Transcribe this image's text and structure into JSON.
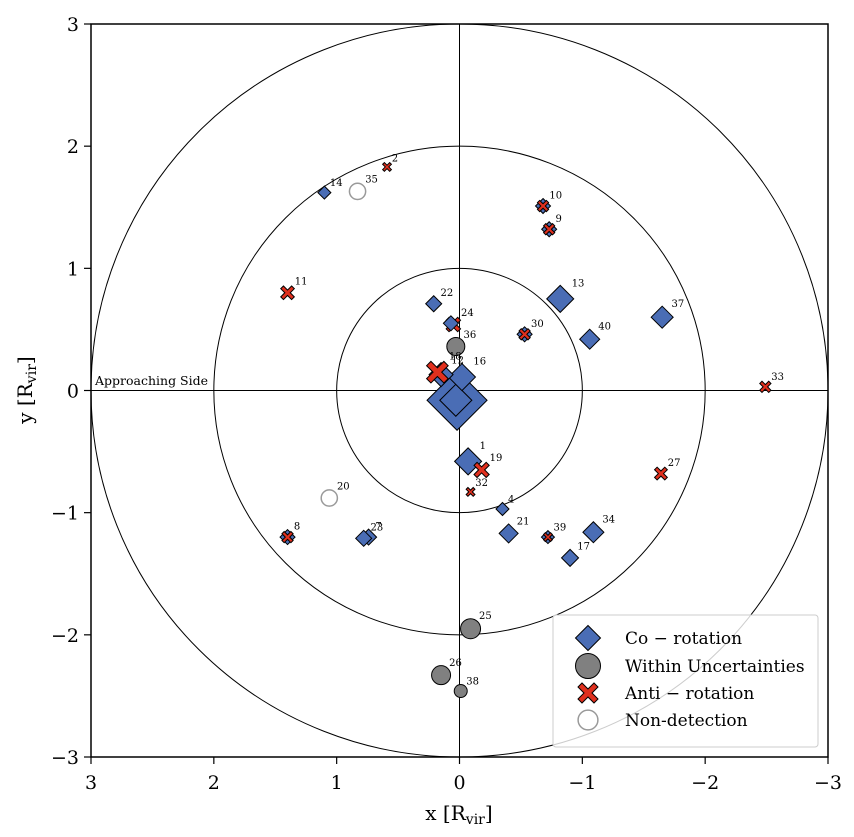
{
  "chart_data": {
    "type": "scatter",
    "title": "",
    "xlabel": "x [R",
    "xlabel_sub": "vir",
    "xlabel_end": "]",
    "ylabel": "y [R",
    "ylabel_sub": "vir",
    "ylabel_end": "]",
    "xlim": [
      3,
      -3
    ],
    "ylim": [
      -3,
      3
    ],
    "x_ticks": [
      3,
      2,
      1,
      0,
      -1,
      -2,
      -3
    ],
    "y_ticks": [
      3,
      2,
      1,
      0,
      -1,
      -2,
      -3
    ],
    "x_tick_labels": [
      "3",
      "2",
      "1",
      "0",
      "−1",
      "−2",
      "−3"
    ],
    "y_tick_labels": [
      "3",
      "2",
      "1",
      "0",
      "−1",
      "−2",
      "−3"
    ],
    "circle_radii": [
      1,
      2,
      3
    ],
    "annotation": "Approaching Side",
    "colors": {
      "co": "#4a6db5",
      "anti": "#e0301e",
      "within": "#808080",
      "nondet": "#9a9a9a",
      "edge": "#000000"
    },
    "legend": {
      "position": "lower-right",
      "entries": [
        {
          "label": "Co − rotation",
          "marker": "co"
        },
        {
          "label": "Within Uncertainties",
          "marker": "within"
        },
        {
          "label": "Anti − rotation",
          "marker": "anti"
        },
        {
          "label": "Non-detection",
          "marker": "nondet"
        }
      ]
    },
    "points": [
      {
        "id": "",
        "x": 0.02,
        "y": -0.08,
        "type": "co",
        "size": 3.0
      },
      {
        "id": "",
        "x": 0.03,
        "y": -0.08,
        "type": "co",
        "size": 1.6
      },
      {
        "id": "16",
        "x": -0.02,
        "y": 0.11,
        "type": "co",
        "size": 1.35
      },
      {
        "id": "12",
        "x": 0.15,
        "y": 0.13,
        "type": "co",
        "size": 1.2
      },
      {
        "id": "18",
        "x": 0.18,
        "y": 0.15,
        "type": "anti",
        "size": 1.35
      },
      {
        "id": "36",
        "x": 0.03,
        "y": 0.36,
        "type": "within",
        "size": 0.9
      },
      {
        "id": "24",
        "x": 0.05,
        "y": 0.54,
        "type": "anti",
        "size": 0.9
      },
      {
        "id": "",
        "x": 0.07,
        "y": 0.55,
        "type": "co",
        "size": 0.75
      },
      {
        "id": "22",
        "x": 0.21,
        "y": 0.71,
        "type": "co",
        "size": 0.8
      },
      {
        "id": "30",
        "x": -0.53,
        "y": 0.46,
        "type": "co",
        "size": 0.75
      },
      {
        "id": "",
        "x": -0.53,
        "y": 0.46,
        "type": "anti",
        "size": 0.7
      },
      {
        "id": "13",
        "x": -0.82,
        "y": 0.75,
        "type": "co",
        "size": 1.35
      },
      {
        "id": "40",
        "x": -1.06,
        "y": 0.42,
        "type": "co",
        "size": 1.0
      },
      {
        "id": "37",
        "x": -1.65,
        "y": 0.6,
        "type": "co",
        "size": 1.1
      },
      {
        "id": "33",
        "x": -2.49,
        "y": 0.03,
        "type": "anti",
        "size": 0.7
      },
      {
        "id": "10",
        "x": -0.68,
        "y": 1.51,
        "type": "co",
        "size": 0.75
      },
      {
        "id": "",
        "x": -0.68,
        "y": 1.51,
        "type": "anti",
        "size": 0.7
      },
      {
        "id": "9",
        "x": -0.73,
        "y": 1.32,
        "type": "co",
        "size": 0.75
      },
      {
        "id": "",
        "x": -0.73,
        "y": 1.32,
        "type": "anti",
        "size": 0.7
      },
      {
        "id": "2",
        "x": 0.59,
        "y": 1.83,
        "type": "anti",
        "size": 0.55
      },
      {
        "id": "14",
        "x": 1.1,
        "y": 1.62,
        "type": "co",
        "size": 0.65
      },
      {
        "id": "35",
        "x": 0.83,
        "y": 1.63,
        "type": "nondet",
        "size": 0.9
      },
      {
        "id": "11",
        "x": 1.4,
        "y": 0.8,
        "type": "anti",
        "size": 0.85
      },
      {
        "id": "1",
        "x": -0.07,
        "y": -0.58,
        "type": "co",
        "size": 1.35
      },
      {
        "id": "19",
        "x": -0.18,
        "y": -0.65,
        "type": "anti",
        "size": 0.95
      },
      {
        "id": "32",
        "x": -0.09,
        "y": -0.83,
        "type": "anti",
        "size": 0.55
      },
      {
        "id": "4",
        "x": -0.35,
        "y": -0.97,
        "type": "co",
        "size": 0.65
      },
      {
        "id": "21",
        "x": -0.4,
        "y": -1.17,
        "type": "co",
        "size": 0.95
      },
      {
        "id": "39",
        "x": -0.72,
        "y": -1.2,
        "type": "co",
        "size": 0.65
      },
      {
        "id": "",
        "x": -0.72,
        "y": -1.2,
        "type": "anti",
        "size": 0.55
      },
      {
        "id": "17",
        "x": -0.9,
        "y": -1.37,
        "type": "co",
        "size": 0.85
      },
      {
        "id": "34",
        "x": -1.09,
        "y": -1.16,
        "type": "co",
        "size": 1.05
      },
      {
        "id": "27",
        "x": -1.64,
        "y": -0.68,
        "type": "anti",
        "size": 0.8
      },
      {
        "id": "20",
        "x": 1.06,
        "y": -0.88,
        "type": "nondet",
        "size": 0.9
      },
      {
        "id": "8",
        "x": 1.4,
        "y": -1.2,
        "type": "co",
        "size": 0.75
      },
      {
        "id": "",
        "x": 1.4,
        "y": -1.2,
        "type": "anti",
        "size": 0.7
      },
      {
        "id": "7",
        "x": 0.74,
        "y": -1.2,
        "type": "co",
        "size": 0.8
      },
      {
        "id": "23",
        "x": 0.78,
        "y": -1.21,
        "type": "co",
        "size": 0.8
      },
      {
        "id": "25",
        "x": -0.09,
        "y": -1.95,
        "type": "within",
        "size": 1.0
      },
      {
        "id": "26",
        "x": 0.15,
        "y": -2.33,
        "type": "within",
        "size": 0.95
      },
      {
        "id": "38",
        "x": -0.01,
        "y": -2.46,
        "type": "within",
        "size": 0.65
      }
    ]
  }
}
